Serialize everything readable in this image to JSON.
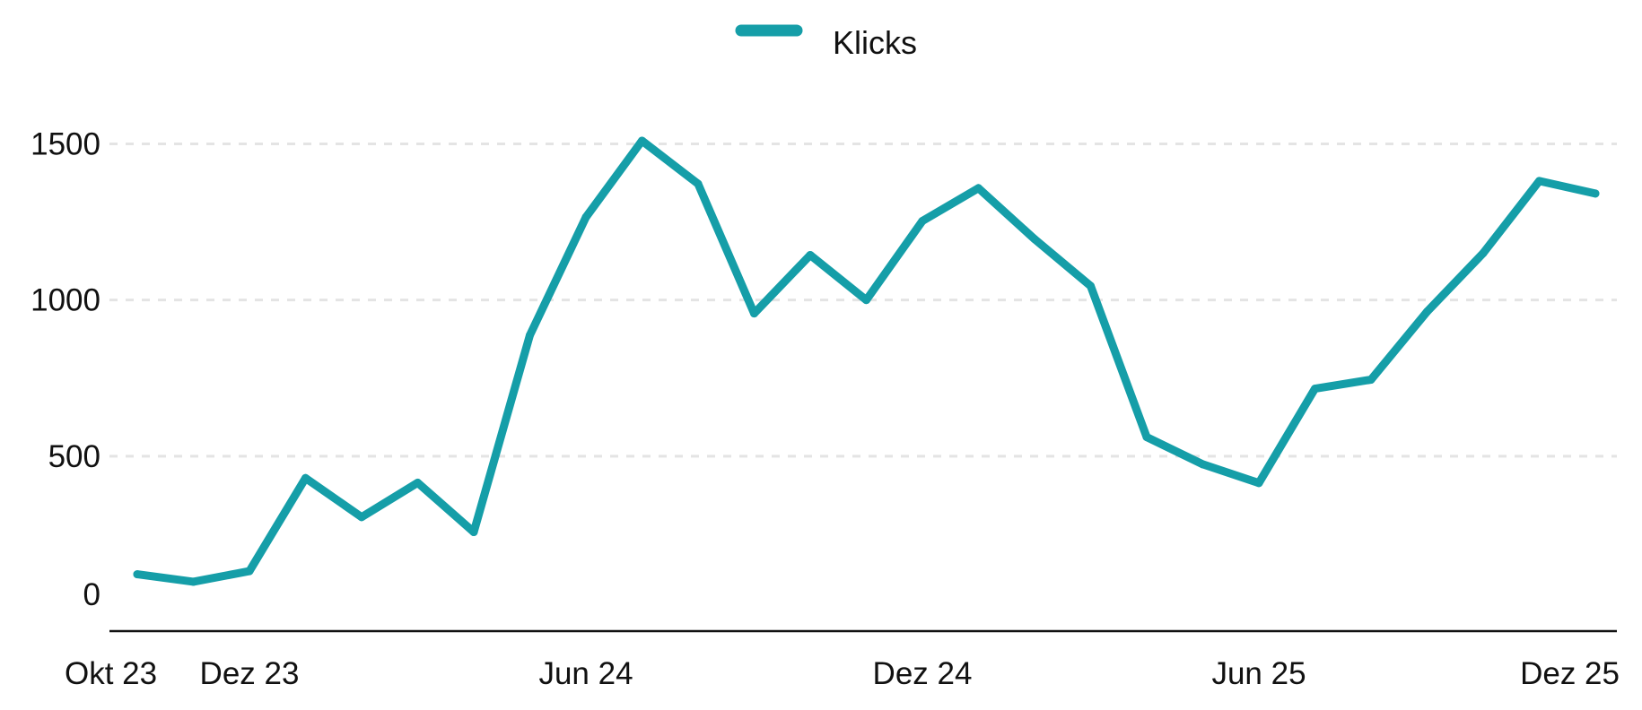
{
  "chart_data": {
    "type": "line",
    "title": "",
    "xlabel": "",
    "ylabel": "",
    "x_tick_labels": [
      "Okt 23",
      "Dez 23",
      "Jun 24",
      "Dez 24",
      "Jun 25",
      "Dez 25"
    ],
    "x_tick_months": [
      "2023-10",
      "2023-12",
      "2024-06",
      "2024-12",
      "2025-06",
      "2025-12"
    ],
    "y_ticks": [
      0,
      500,
      1000,
      1500
    ],
    "ylim": [
      -60,
      1530
    ],
    "grid": "horizontal dashed",
    "legend": "top-center",
    "series": [
      {
        "name": "Klicks",
        "color": "#159ea8",
        "months": [
          "2023-10",
          "2023-11",
          "2023-12",
          "2024-01",
          "2024-02",
          "2024-03",
          "2024-04",
          "2024-05",
          "2024-06",
          "2024-07",
          "2024-08",
          "2024-09",
          "2024-10",
          "2024-11",
          "2024-12",
          "2025-01",
          "2025-02",
          "2025-03",
          "2025-04",
          "2025-05",
          "2025-06",
          "2025-07",
          "2025-08",
          "2025-09",
          "2025-10",
          "2025-11",
          "2025-12"
        ],
        "values": [
          122,
          98,
          132,
          430,
          305,
          415,
          257,
          887,
          1265,
          1510,
          1372,
          957,
          1144,
          1000,
          1253,
          1358,
          1195,
          1045,
          561,
          474,
          414,
          716,
          745,
          963,
          1150,
          1381,
          1341
        ]
      }
    ]
  }
}
